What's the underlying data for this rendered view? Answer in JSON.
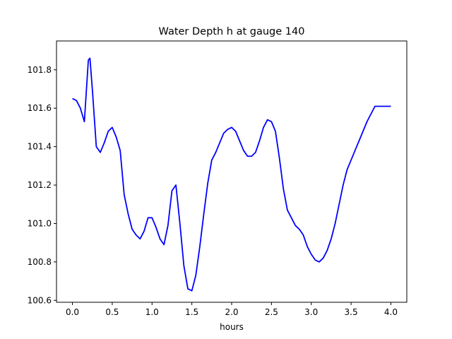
{
  "chart_data": {
    "type": "line",
    "title": "Water Depth h at gauge 140",
    "xlabel": "hours",
    "ylabel": "",
    "xlim": [
      -0.2,
      4.2
    ],
    "ylim": [
      100.59,
      101.95
    ],
    "x_ticks": [
      0.0,
      0.5,
      1.0,
      1.5,
      2.0,
      2.5,
      3.0,
      3.5,
      4.0
    ],
    "x_tick_labels": [
      "0.0",
      "0.5",
      "1.0",
      "1.5",
      "2.0",
      "2.5",
      "3.0",
      "3.5",
      "4.0"
    ],
    "y_ticks": [
      100.6,
      100.8,
      101.0,
      101.2,
      101.4,
      101.6,
      101.8
    ],
    "y_tick_labels": [
      "100.6",
      "100.8",
      "101.0",
      "101.2",
      "101.4",
      "101.6",
      "101.8"
    ],
    "grid": false,
    "series": [
      {
        "color": "#0000ff",
        "x": [
          0.0,
          0.05,
          0.1,
          0.15,
          0.2,
          0.22,
          0.25,
          0.3,
          0.35,
          0.4,
          0.45,
          0.5,
          0.55,
          0.6,
          0.65,
          0.7,
          0.75,
          0.8,
          0.85,
          0.9,
          0.95,
          1.0,
          1.05,
          1.1,
          1.15,
          1.2,
          1.25,
          1.3,
          1.35,
          1.4,
          1.45,
          1.5,
          1.55,
          1.6,
          1.65,
          1.7,
          1.75,
          1.8,
          1.85,
          1.9,
          1.95,
          2.0,
          2.05,
          2.1,
          2.15,
          2.2,
          2.25,
          2.3,
          2.35,
          2.4,
          2.45,
          2.5,
          2.55,
          2.6,
          2.65,
          2.7,
          2.75,
          2.8,
          2.85,
          2.9,
          2.95,
          3.0,
          3.05,
          3.1,
          3.15,
          3.2,
          3.25,
          3.3,
          3.35,
          3.4,
          3.45,
          3.5,
          3.55,
          3.6,
          3.65,
          3.7,
          3.75,
          3.8,
          3.85,
          3.9,
          3.95,
          4.0
        ],
        "y": [
          101.65,
          101.64,
          101.6,
          101.53,
          101.85,
          101.86,
          101.7,
          101.4,
          101.37,
          101.42,
          101.48,
          101.5,
          101.45,
          101.38,
          101.15,
          101.05,
          100.97,
          100.94,
          100.92,
          100.96,
          101.03,
          101.03,
          100.98,
          100.92,
          100.89,
          100.99,
          101.17,
          101.2,
          101.0,
          100.78,
          100.66,
          100.65,
          100.73,
          100.88,
          101.05,
          101.21,
          101.33,
          101.37,
          101.42,
          101.47,
          101.49,
          101.5,
          101.48,
          101.43,
          101.38,
          101.35,
          101.35,
          101.37,
          101.43,
          101.5,
          101.54,
          101.53,
          101.48,
          101.34,
          101.18,
          101.07,
          101.03,
          100.99,
          100.97,
          100.94,
          100.88,
          100.84,
          100.81,
          100.8,
          100.82,
          100.86,
          100.92,
          101.0,
          101.1,
          101.2,
          101.28,
          101.33,
          101.38,
          101.43,
          101.48,
          101.53,
          101.57,
          101.61,
          101.61,
          101.61,
          101.61,
          101.61
        ]
      }
    ]
  }
}
